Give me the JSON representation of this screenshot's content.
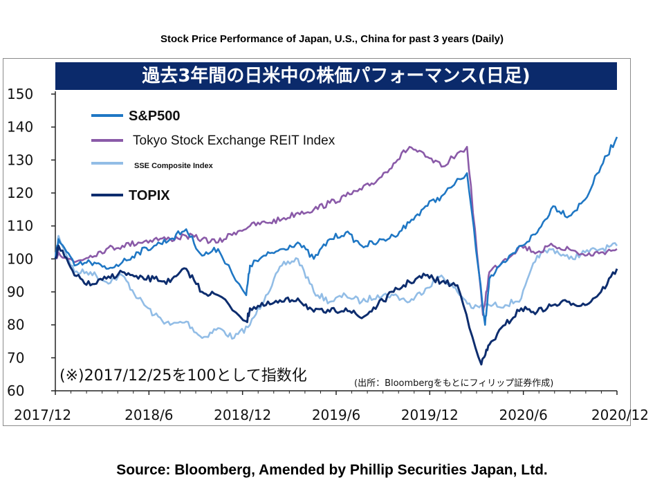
{
  "page_title": "Stock Price Performance of Japan, U.S., China for past 3 years (Daily)",
  "source": "Source: Bloomberg, Amended by Phillip Securities Japan, Ltd.",
  "chart_data": {
    "type": "line",
    "title": "過去3年間の日米中の株価パフォーマンス(日足)",
    "note": "(※)2017/12/25を100として指数化",
    "credit": "(出所：Bloombergをもとにフィリップ証券作成)",
    "ylim": [
      60,
      150
    ],
    "yticks": [
      150,
      140,
      130,
      120,
      110,
      100,
      90,
      80,
      70,
      60
    ],
    "xlim": [
      "2017/12",
      "2020/12"
    ],
    "xticks": [
      "2017/12",
      "2018/6",
      "2018/12",
      "2019/6",
      "2019/12",
      "2020/6",
      "2020/12"
    ],
    "grid": false,
    "legend_position": "top-left",
    "series": [
      {
        "name": "S&P500",
        "color": "#1f77c4",
        "x": [
          "2017/12/25",
          "2018/1",
          "2018/2",
          "2018/3",
          "2018/4",
          "2018/5",
          "2018/6",
          "2018/7",
          "2018/8",
          "2018/9",
          "2018/10",
          "2018/11",
          "2018/12/24",
          "2019/1",
          "2019/2",
          "2019/3",
          "2019/4",
          "2019/5",
          "2019/6",
          "2019/7",
          "2019/8",
          "2019/9",
          "2019/10",
          "2019/11",
          "2019/12",
          "2020/1",
          "2020/2/19",
          "2020/3/23",
          "2020/4",
          "2020/5",
          "2020/6",
          "2020/7",
          "2020/8",
          "2020/9",
          "2020/10",
          "2020/11",
          "2020/12"
        ],
        "values": [
          100,
          106,
          98,
          99,
          97,
          99,
          102,
          104,
          106,
          109,
          101,
          103,
          89,
          98,
          101,
          103,
          105,
          100,
          106,
          108,
          104,
          105,
          107,
          111,
          116,
          119,
          126,
          80,
          94,
          99,
          104,
          108,
          116,
          113,
          118,
          128,
          137
        ]
      },
      {
        "name": "Tokyo Stock Exchange REIT Index",
        "color": "#8a5aa8",
        "x": [
          "2017/12/25",
          "2018/1",
          "2018/2",
          "2018/3",
          "2018/4",
          "2018/5",
          "2018/6",
          "2018/7",
          "2018/8",
          "2018/9",
          "2018/10",
          "2018/11",
          "2018/12",
          "2019/1",
          "2019/2",
          "2019/3",
          "2019/4",
          "2019/5",
          "2019/6",
          "2019/7",
          "2019/8",
          "2019/9",
          "2019/10",
          "2019/11",
          "2019/12",
          "2020/1",
          "2020/2/19",
          "2020/3/19",
          "2020/4",
          "2020/5",
          "2020/6",
          "2020/7",
          "2020/8",
          "2020/9",
          "2020/10",
          "2020/11",
          "2020/12"
        ],
        "values": [
          100,
          102,
          99,
          101,
          103,
          104,
          105,
          106,
          106,
          107,
          106,
          105,
          108,
          110,
          111,
          112,
          114,
          115,
          117,
          119,
          121,
          124,
          129,
          134,
          131,
          128,
          134,
          83,
          96,
          100,
          104,
          102,
          104,
          103,
          101,
          102,
          103
        ]
      },
      {
        "name": "SSE Composite Index",
        "color": "#92bde6",
        "x": [
          "2017/12/25",
          "2018/1",
          "2018/2",
          "2018/3",
          "2018/4",
          "2018/5",
          "2018/6",
          "2018/7",
          "2018/8",
          "2018/9",
          "2018/10",
          "2018/11",
          "2018/12",
          "2019/1",
          "2019/2",
          "2019/3",
          "2019/4",
          "2019/5",
          "2019/6",
          "2019/7",
          "2019/8",
          "2019/9",
          "2019/10",
          "2019/11",
          "2019/12",
          "2020/1",
          "2020/2",
          "2020/3",
          "2020/4",
          "2020/5",
          "2020/6",
          "2020/7",
          "2020/8",
          "2020/9",
          "2020/10",
          "2020/11",
          "2020/12"
        ],
        "values": [
          100,
          107,
          96,
          96,
          93,
          95,
          88,
          83,
          80,
          81,
          76,
          79,
          76,
          80,
          89,
          98,
          100,
          90,
          87,
          89,
          87,
          89,
          89,
          87,
          91,
          95,
          90,
          85,
          86,
          86,
          88,
          101,
          103,
          100,
          102,
          103,
          104
        ]
      },
      {
        "name": "TOPIX",
        "color": "#0d2d6e",
        "x": [
          "2017/12/25",
          "2018/1",
          "2018/2",
          "2018/3",
          "2018/4",
          "2018/5",
          "2018/6",
          "2018/7",
          "2018/8",
          "2018/9",
          "2018/10",
          "2018/11",
          "2018/12/25",
          "2019/1",
          "2019/2",
          "2019/3",
          "2019/4",
          "2019/5",
          "2019/6",
          "2019/7",
          "2019/8",
          "2019/9",
          "2019/10",
          "2019/11",
          "2019/12",
          "2020/1",
          "2020/2",
          "2020/3/16",
          "2020/4",
          "2020/5",
          "2020/6",
          "2020/7",
          "2020/8",
          "2020/9",
          "2020/10",
          "2020/11",
          "2020/12"
        ],
        "values": [
          100,
          104,
          95,
          92,
          94,
          96,
          94,
          94,
          93,
          97,
          90,
          89,
          81,
          85,
          86,
          87,
          88,
          84,
          84,
          85,
          82,
          86,
          90,
          93,
          95,
          93,
          92,
          68,
          74,
          80,
          85,
          84,
          86,
          87,
          86,
          90,
          97
        ]
      }
    ]
  }
}
